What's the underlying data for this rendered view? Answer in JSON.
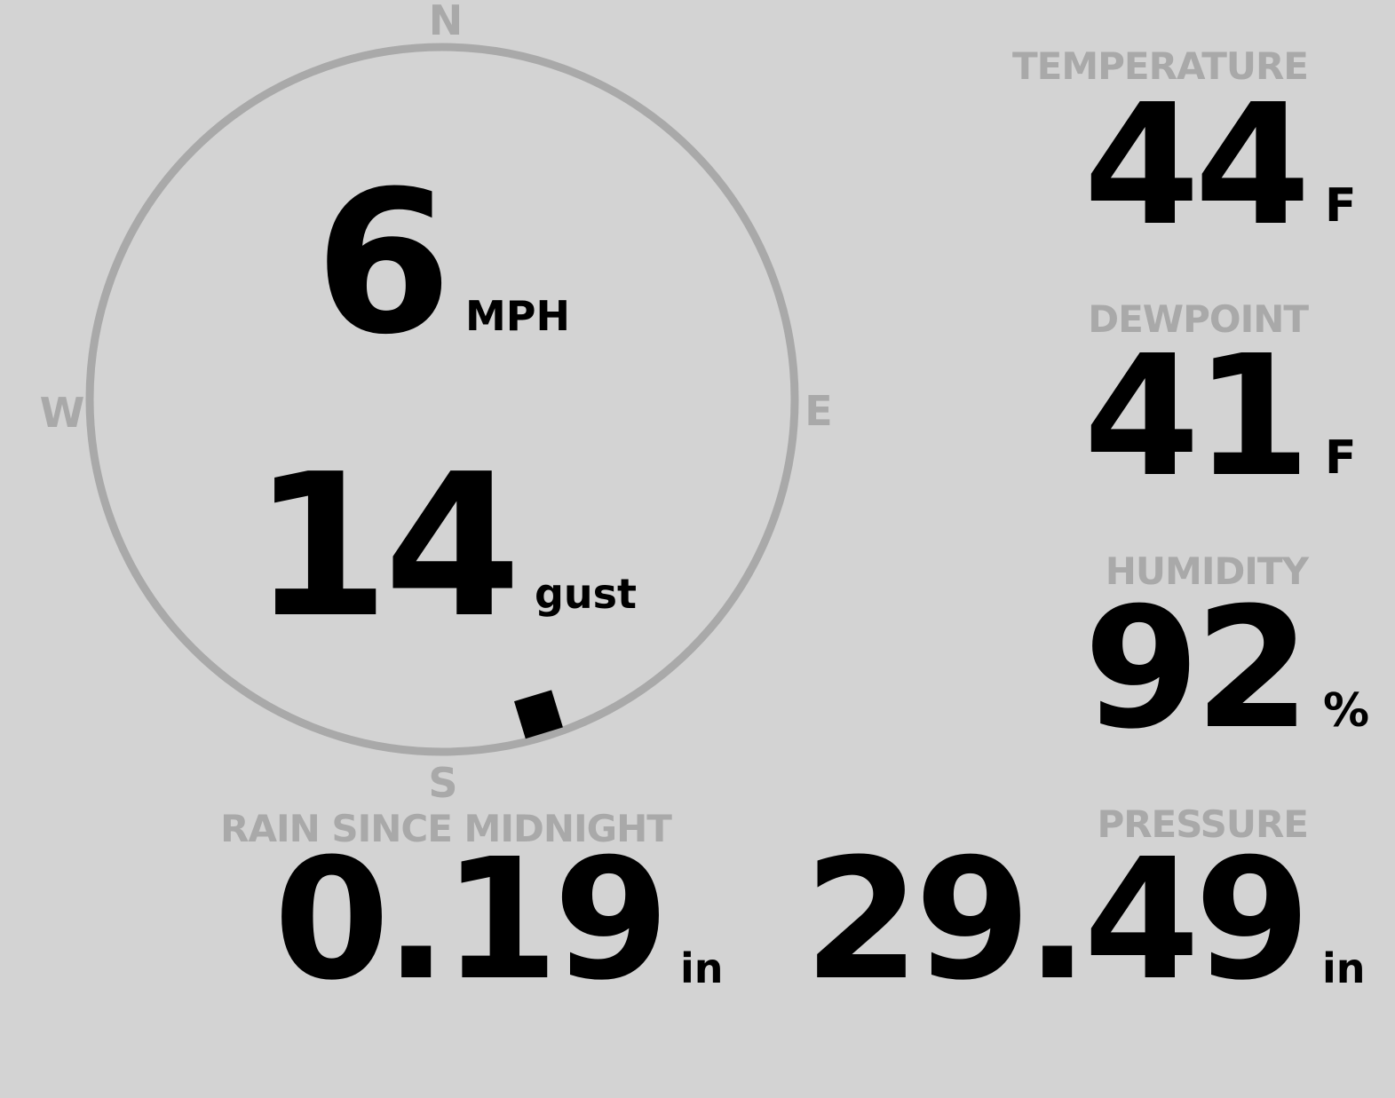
{
  "wind": {
    "speed": "6",
    "speed_unit": "MPH",
    "gust": "14",
    "gust_unit": "gust",
    "direction_deg": 163,
    "compass": {
      "n": "N",
      "e": "E",
      "s": "S",
      "w": "W"
    }
  },
  "temperature": {
    "label": "TEMPERATURE",
    "value": "44",
    "unit": "F"
  },
  "dewpoint": {
    "label": "DEWPOINT",
    "value": "41",
    "unit": "F"
  },
  "humidity": {
    "label": "HUMIDITY",
    "value": "92",
    "unit": "%"
  },
  "rain": {
    "label": "RAIN SINCE MIDNIGHT",
    "value": "0.19",
    "unit": "in"
  },
  "pressure": {
    "label": "PRESSURE",
    "value": "29.49",
    "unit": "in"
  },
  "colors": {
    "background": "#d3d3d3",
    "label": "#a9a9a9",
    "value": "#000000"
  }
}
